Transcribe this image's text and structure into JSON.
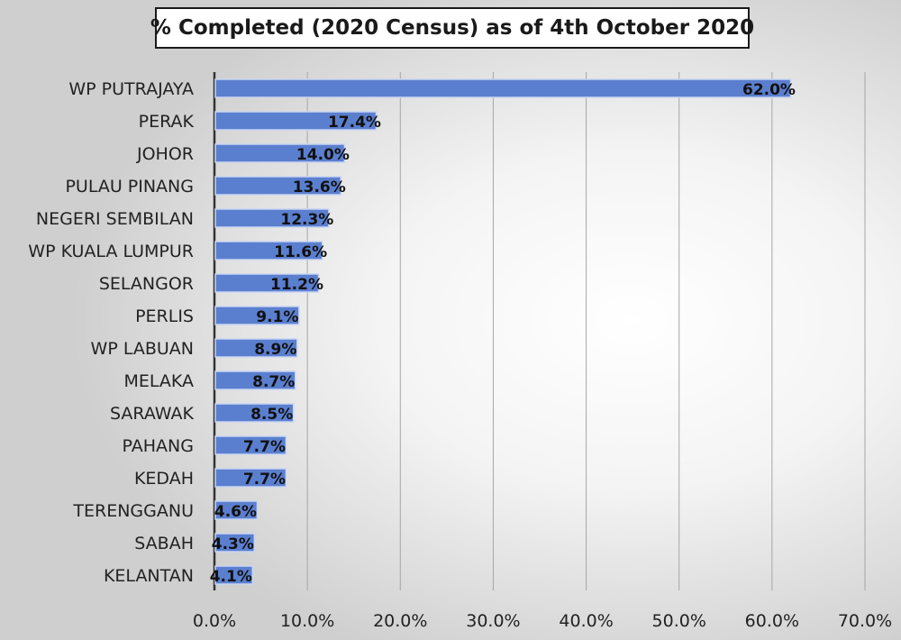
{
  "chart_data": {
    "type": "bar",
    "orientation": "horizontal",
    "title": "% Completed (2020 Census) as of 4th October 2020",
    "categories": [
      "WP PUTRAJAYA",
      "PERAK",
      "JOHOR",
      "PULAU PINANG",
      "NEGERI SEMBILAN",
      "WP KUALA LUMPUR",
      "SELANGOR",
      "PERLIS",
      "WP LABUAN",
      "MELAKA",
      "SARAWAK",
      "PAHANG",
      "KEDAH",
      "TERENGGANU",
      "SABAH",
      "KELANTAN"
    ],
    "values": [
      62.0,
      17.4,
      14.0,
      13.6,
      12.3,
      11.6,
      11.2,
      9.1,
      8.9,
      8.7,
      8.5,
      7.7,
      7.7,
      4.6,
      4.3,
      4.1
    ],
    "data_labels": [
      "62.0%",
      "17.4%",
      "14.0%",
      "13.6%",
      "12.3%",
      "11.6%",
      "11.2%",
      "9.1%",
      "8.9%",
      "8.7%",
      "8.5%",
      "7.7%",
      "7.7%",
      "4.6%",
      "4.3%",
      "4.1%"
    ],
    "xlim": [
      0,
      70
    ],
    "x_ticks": [
      0,
      10,
      20,
      30,
      40,
      50,
      60,
      70
    ],
    "x_tick_labels": [
      "0.0%",
      "10.0%",
      "20.0%",
      "30.0%",
      "40.0%",
      "50.0%",
      "60.0%",
      "70.0%"
    ],
    "grid": true,
    "legend": "none",
    "colors": {
      "bar": "#5b7fcf",
      "bar_edge": "#c9d6f2",
      "grid": "#a6a6a6",
      "axis": "#333333"
    }
  }
}
